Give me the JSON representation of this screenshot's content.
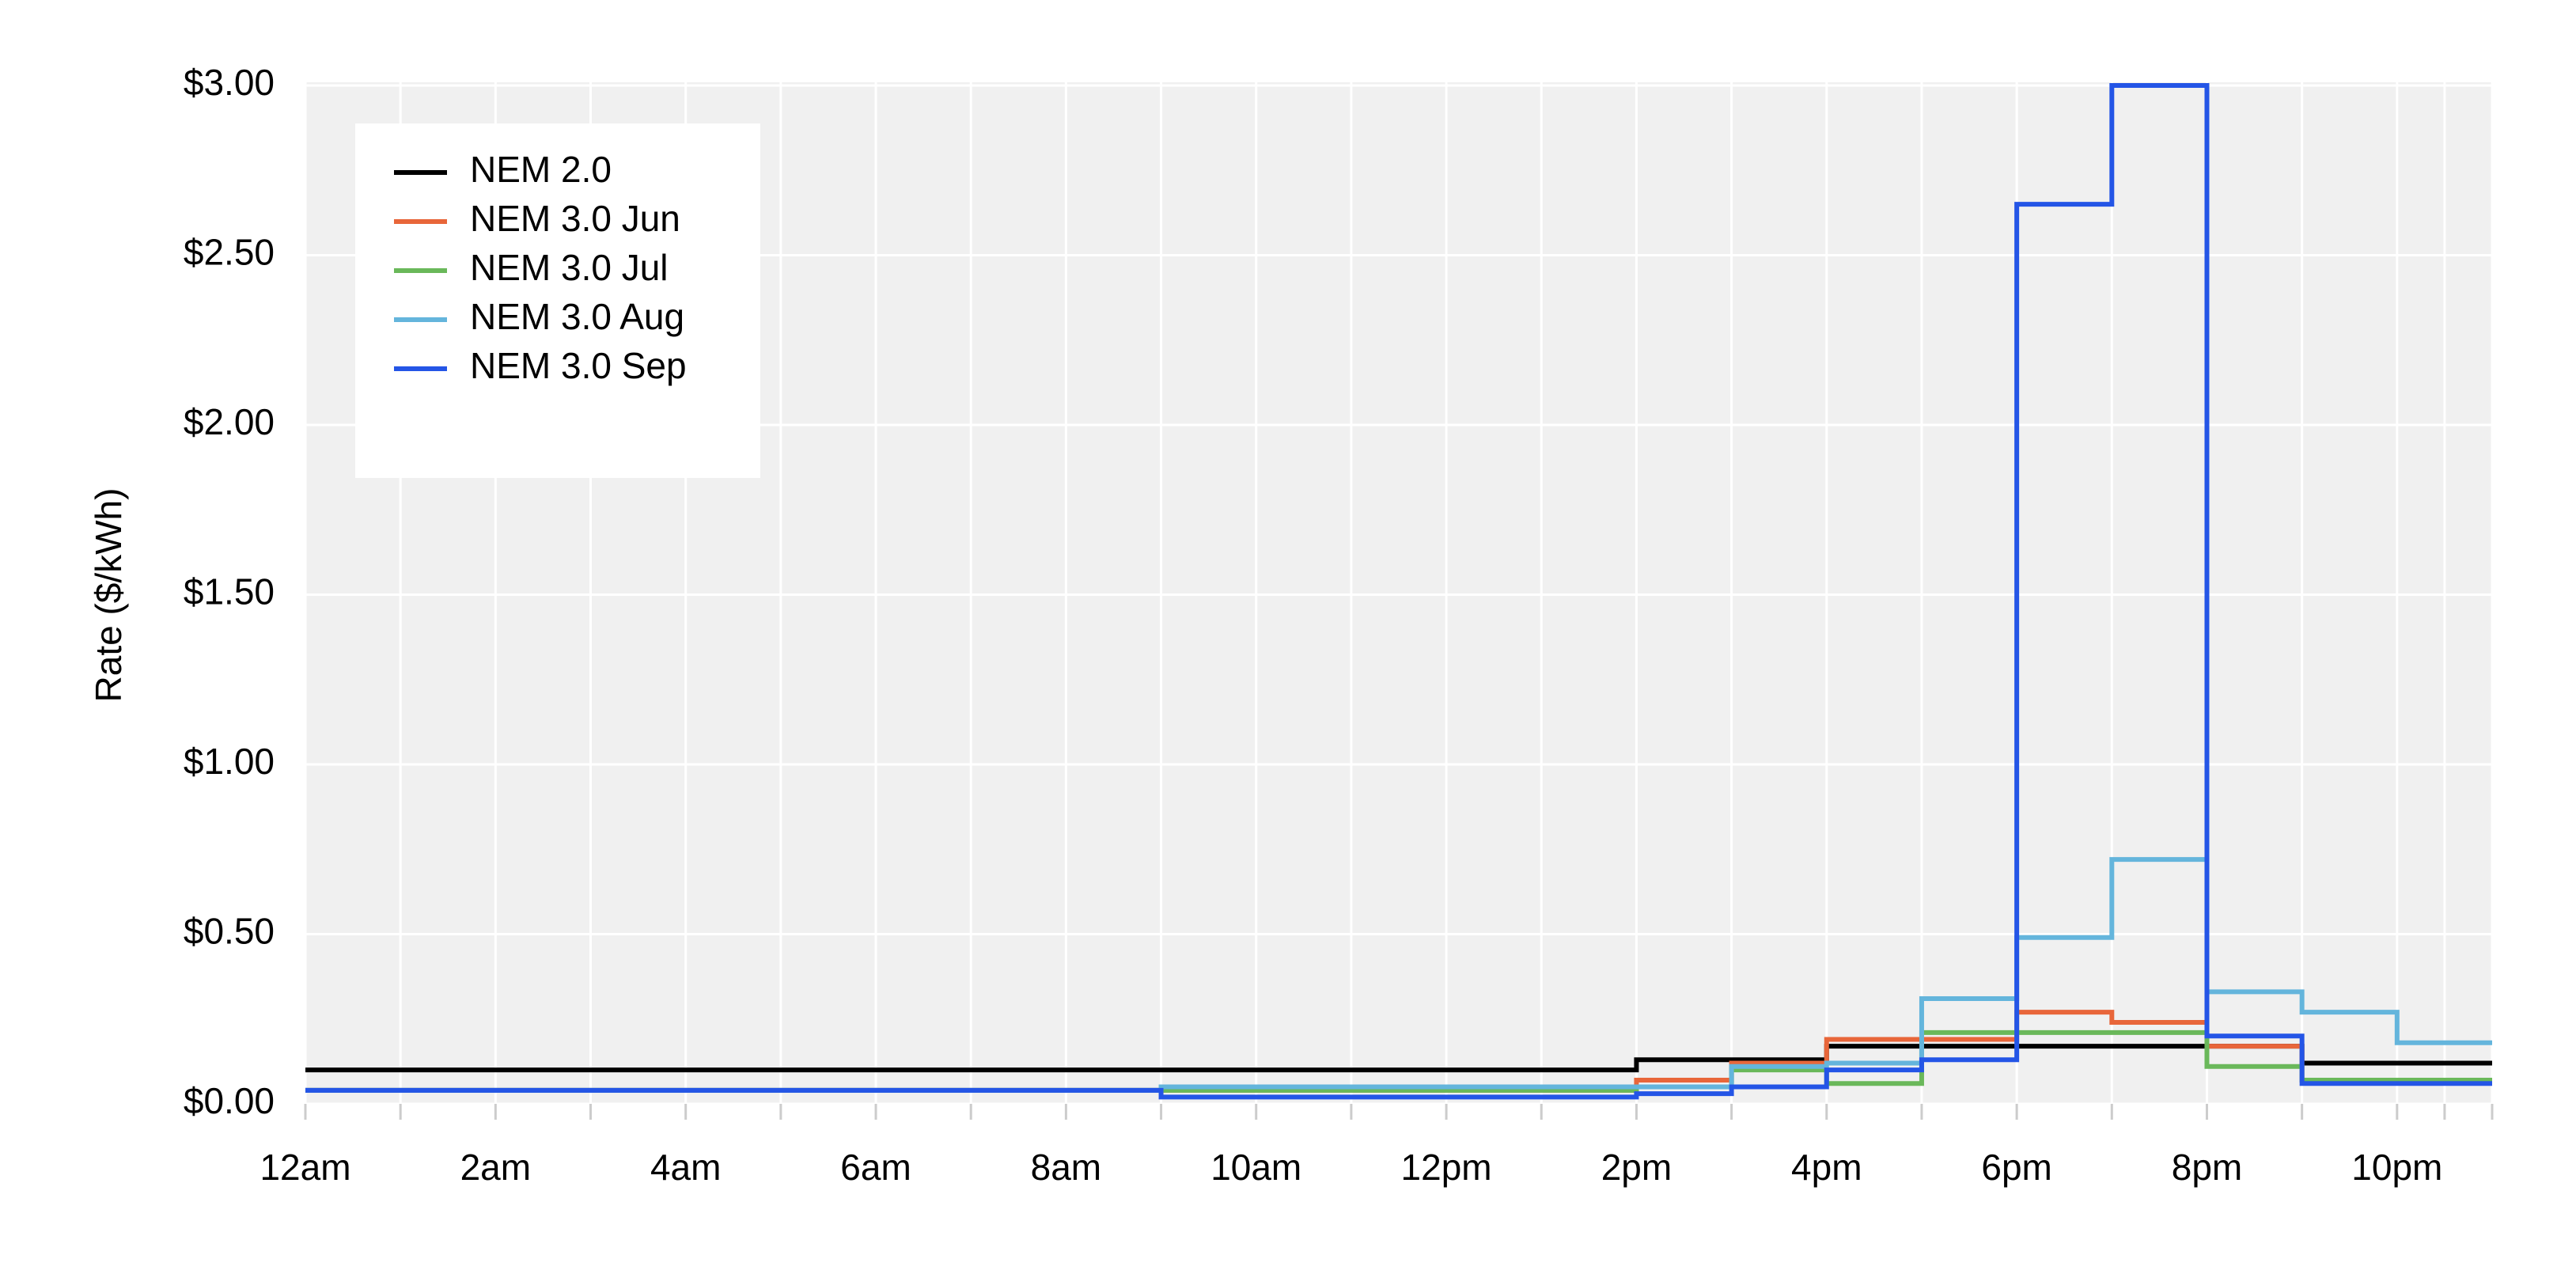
{
  "chart_data": {
    "type": "line",
    "step": "post",
    "ylabel": "Rate ($/kWh)",
    "x": [
      0,
      1,
      2,
      3,
      4,
      5,
      6,
      7,
      8,
      9,
      10,
      11,
      12,
      13,
      14,
      15,
      16,
      17,
      18,
      19,
      20,
      21,
      22,
      23
    ],
    "xlim": [
      0,
      23
    ],
    "xticks": [
      {
        "value": 0,
        "label": "12am"
      },
      {
        "value": 2,
        "label": "2am"
      },
      {
        "value": 4,
        "label": "4am"
      },
      {
        "value": 6,
        "label": "6am"
      },
      {
        "value": 8,
        "label": "8am"
      },
      {
        "value": 10,
        "label": "10am"
      },
      {
        "value": 12,
        "label": "12pm"
      },
      {
        "value": 14,
        "label": "2pm"
      },
      {
        "value": 16,
        "label": "4pm"
      },
      {
        "value": 18,
        "label": "6pm"
      },
      {
        "value": 20,
        "label": "8pm"
      },
      {
        "value": 22,
        "label": "10pm"
      }
    ],
    "ylim": [
      0,
      3
    ],
    "yticks": [
      {
        "value": 0,
        "label": "$0.00"
      },
      {
        "value": 0.5,
        "label": "$0.50"
      },
      {
        "value": 1,
        "label": "$1.00"
      },
      {
        "value": 1.5,
        "label": "$1.50"
      },
      {
        "value": 2,
        "label": "$2.00"
      },
      {
        "value": 2.5,
        "label": "$2.50"
      },
      {
        "value": 3,
        "label": "$3.00"
      }
    ],
    "grid": true,
    "legend": "upper left",
    "series": [
      {
        "name": "NEM 2.0",
        "color": "#000000",
        "values": [
          0.1,
          0.1,
          0.1,
          0.1,
          0.1,
          0.1,
          0.1,
          0.1,
          0.1,
          0.1,
          0.1,
          0.1,
          0.1,
          0.1,
          0.13,
          0.13,
          0.17,
          0.17,
          0.17,
          0.17,
          0.17,
          0.12,
          0.12,
          0.12
        ]
      },
      {
        "name": "NEM 3.0 Jun",
        "color": "#e8663a",
        "values": [
          0.04,
          0.04,
          0.04,
          0.04,
          0.04,
          0.04,
          0.04,
          0.04,
          0.04,
          0.04,
          0.04,
          0.04,
          0.04,
          0.04,
          0.07,
          0.12,
          0.19,
          0.19,
          0.27,
          0.24,
          0.17,
          0.07,
          0.07,
          0.07
        ]
      },
      {
        "name": "NEM 3.0 Jul",
        "color": "#6ab85a",
        "values": [
          0.04,
          0.04,
          0.04,
          0.04,
          0.04,
          0.04,
          0.04,
          0.04,
          0.04,
          0.04,
          0.04,
          0.04,
          0.04,
          0.04,
          0.05,
          0.1,
          0.06,
          0.21,
          0.21,
          0.21,
          0.11,
          0.07,
          0.07,
          0.07
        ]
      },
      {
        "name": "NEM 3.0 Aug",
        "color": "#64b5dc",
        "values": [
          0.04,
          0.04,
          0.04,
          0.04,
          0.04,
          0.04,
          0.04,
          0.04,
          0.04,
          0.05,
          0.05,
          0.05,
          0.05,
          0.05,
          0.05,
          0.11,
          0.12,
          0.31,
          0.49,
          0.72,
          0.33,
          0.27,
          0.18,
          0.18
        ]
      },
      {
        "name": "NEM 3.0 Sep",
        "color": "#2455e6",
        "values": [
          0.04,
          0.04,
          0.04,
          0.04,
          0.04,
          0.04,
          0.04,
          0.04,
          0.04,
          0.02,
          0.02,
          0.02,
          0.02,
          0.02,
          0.03,
          0.05,
          0.1,
          0.13,
          2.65,
          3.0,
          0.2,
          0.06,
          0.06,
          0.06
        ]
      }
    ]
  }
}
